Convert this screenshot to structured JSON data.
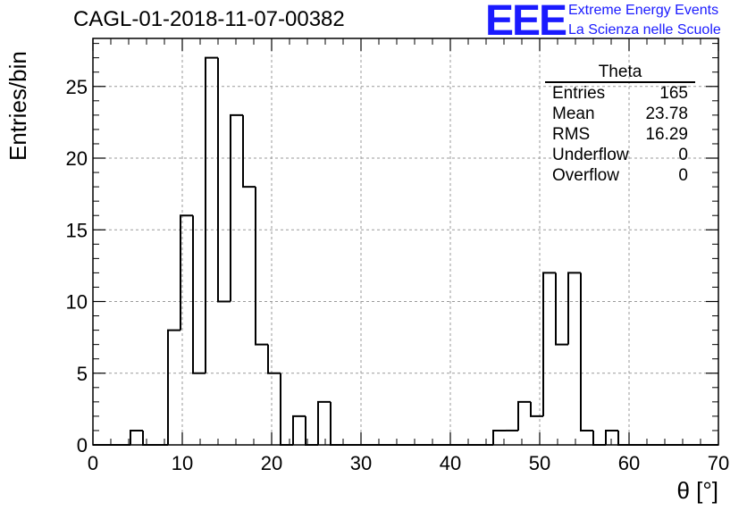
{
  "header": {
    "run_title": "CAGL-01-2018-11-07-00382",
    "logo_mark": "EEE",
    "logo_line1": "Extreme Energy Events",
    "logo_line2": "La Scienza nelle Scuole",
    "logo_color": "#1a1aff"
  },
  "stats_box": {
    "title": "Theta",
    "rows": [
      {
        "label": "Entries",
        "value": "165"
      },
      {
        "label": "Mean",
        "value": "23.78"
      },
      {
        "label": "RMS",
        "value": "16.29"
      },
      {
        "label": "Underflow",
        "value": "0"
      },
      {
        "label": "Overflow",
        "value": "0"
      }
    ]
  },
  "chart_data": {
    "type": "bar",
    "style": "step-histogram",
    "title": "",
    "xlabel": "θ [°]",
    "ylabel": "Entries/bin",
    "xlim": [
      0,
      70
    ],
    "ylim": [
      0,
      28.35
    ],
    "xticks": [
      0,
      10,
      20,
      30,
      40,
      50,
      60,
      70
    ],
    "yticks": [
      0,
      5,
      10,
      15,
      20,
      25
    ],
    "grid": true,
    "bin_width": 1.4,
    "bin_edges_start": 0,
    "counts": [
      0,
      0,
      0,
      1,
      0,
      0,
      8,
      16,
      5,
      27,
      10,
      23,
      18,
      7,
      5,
      0,
      2,
      0,
      3,
      0,
      0,
      0,
      0,
      0,
      0,
      0,
      0,
      0,
      0,
      0,
      0,
      0,
      1,
      1,
      3,
      2,
      12,
      7,
      12,
      1,
      0,
      1,
      0,
      0,
      0,
      0,
      0,
      0,
      0,
      0
    ],
    "line_color": "#000000"
  }
}
